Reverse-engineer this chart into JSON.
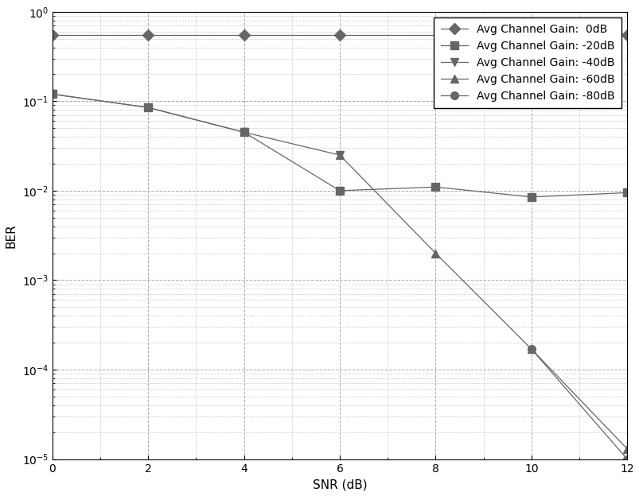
{
  "title": "",
  "xlabel": "SNR (dB)",
  "ylabel": "BER",
  "xlim": [
    0,
    12
  ],
  "ylim_log": [
    1e-05,
    1.0
  ],
  "xticks": [
    0,
    2,
    4,
    6,
    8,
    10,
    12
  ],
  "series": [
    {
      "label": "Avg Channel Gain:  0dB",
      "marker": "D",
      "color": "#666666",
      "markersize": 7,
      "snr": [
        0,
        2,
        4,
        6,
        12
      ],
      "ber": [
        0.55,
        0.55,
        0.55,
        0.55,
        0.55
      ]
    },
    {
      "label": "Avg Channel Gain: -20dB",
      "marker": "s",
      "color": "#666666",
      "markersize": 7,
      "snr": [
        0,
        2,
        4,
        6,
        8,
        10,
        12
      ],
      "ber": [
        0.12,
        0.085,
        0.045,
        0.01,
        0.011,
        0.0085,
        0.0095
      ]
    },
    {
      "label": "Avg Channel Gain: -40dB",
      "marker": "v",
      "color": "#666666",
      "markersize": 7,
      "snr": [
        0,
        2,
        4,
        6
      ],
      "ber": [
        0.12,
        0.085,
        0.045,
        0.025
      ]
    },
    {
      "label": "Avg Channel Gain: -60dB",
      "marker": "^",
      "color": "#666666",
      "markersize": 7,
      "snr": [
        6,
        8,
        10,
        12
      ],
      "ber": [
        0.025,
        0.002,
        0.00017,
        1.3e-05
      ]
    },
    {
      "label": "Avg Channel Gain: -80dB",
      "marker": "o",
      "color": "#666666",
      "markersize": 7,
      "snr": [
        10,
        12
      ],
      "ber": [
        0.00017,
        1e-05
      ]
    }
  ],
  "background_color": "#ffffff",
  "grid_major_color": "#aaaaaa",
  "grid_minor_color": "#cccccc",
  "line_color": "#666666",
  "legend_loc": "upper right",
  "font_size": 11
}
